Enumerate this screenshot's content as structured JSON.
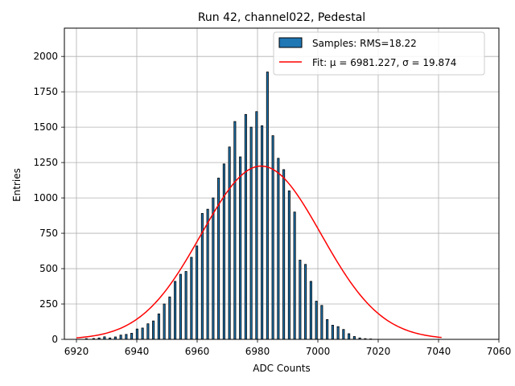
{
  "chart_data": {
    "type": "bar",
    "title": "Run 42, channel022, Pedestal",
    "xlabel": "ADC Counts",
    "ylabel": "Entries",
    "xlim": [
      6916,
      7060
    ],
    "ylim": [
      0,
      2200
    ],
    "xticks": [
      6920,
      6940,
      6960,
      6980,
      7000,
      7020,
      7040,
      7060
    ],
    "yticks": [
      0,
      250,
      500,
      750,
      1000,
      1250,
      1500,
      1750,
      2000
    ],
    "grid": true,
    "legend_position": "top-right",
    "bin_start": 6920,
    "bin_width": 0.6,
    "series": [
      {
        "name": "Samples: RMS=18.22",
        "kind": "histogram",
        "color": "#1f77b4",
        "edgecolor": "#000000",
        "values": [
          0,
          0,
          0,
          0,
          0,
          5,
          0,
          0,
          0,
          6,
          0,
          0,
          10,
          0,
          0,
          18,
          0,
          0,
          10,
          0,
          0,
          17,
          0,
          0,
          30,
          0,
          0,
          35,
          0,
          0,
          43,
          0,
          0,
          73,
          0,
          0,
          80,
          0,
          0,
          110,
          0,
          0,
          130,
          0,
          0,
          180,
          0,
          0,
          250,
          0,
          0,
          300,
          0,
          0,
          410,
          0,
          0,
          460,
          0,
          0,
          480,
          0,
          0,
          580,
          0,
          0,
          660,
          0,
          0,
          890,
          0,
          0,
          920,
          0,
          0,
          1000,
          0,
          0,
          1140,
          0,
          0,
          1240,
          0,
          0,
          1360,
          0,
          0,
          1540,
          0,
          0,
          1290,
          0,
          0,
          1590,
          0,
          0,
          1500,
          0,
          0,
          1610,
          0,
          0,
          1510,
          0,
          0,
          1890,
          0,
          0,
          1440,
          0,
          0,
          1280,
          0,
          0,
          1200,
          0,
          0,
          1050,
          0,
          0,
          900,
          0,
          0,
          560,
          0,
          0,
          530,
          0,
          0,
          410,
          0,
          0,
          270,
          0,
          0,
          240,
          0,
          0,
          140,
          0,
          0,
          100,
          0,
          0,
          90,
          0,
          0,
          70,
          0,
          0,
          40,
          0,
          0,
          20,
          0,
          0,
          10,
          0,
          0,
          5,
          0,
          0,
          3,
          0,
          0,
          0,
          0,
          0,
          0,
          0,
          0,
          0,
          0,
          0,
          0,
          0,
          0,
          0
        ]
      },
      {
        "name": "Fit: μ = 6981.227, σ = 19.874",
        "kind": "line",
        "color": "#ff0000",
        "mu": 6981.227,
        "sigma": 19.874,
        "amplitude": 1225,
        "x_range": [
          6920,
          7041
        ]
      }
    ]
  }
}
